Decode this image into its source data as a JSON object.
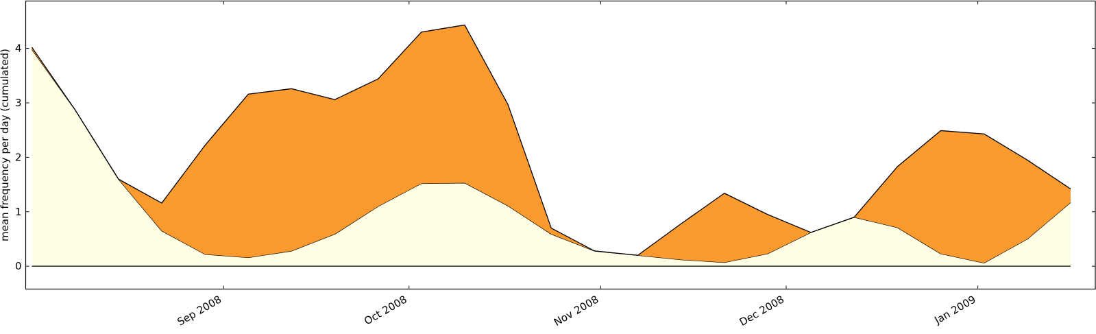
{
  "chart_data": {
    "type": "area",
    "stacked": true,
    "title": "",
    "xlabel": "",
    "ylabel": "mean frequency per day (cumulated)",
    "x": [
      "2008-08-01",
      "2008-08-08",
      "2008-08-15",
      "2008-08-22",
      "2008-08-29",
      "2008-09-05",
      "2008-09-12",
      "2008-09-19",
      "2008-09-26",
      "2008-10-03",
      "2008-10-10",
      "2008-10-17",
      "2008-10-24",
      "2008-10-31",
      "2008-11-07",
      "2008-11-14",
      "2008-11-21",
      "2008-11-28",
      "2008-12-05",
      "2008-12-12",
      "2008-12-19",
      "2008-12-26",
      "2009-01-02",
      "2009-01-09",
      "2009-01-16"
    ],
    "xlim": [
      "2008-07-31",
      "2009-01-20"
    ],
    "x_tick_labels": [
      {
        "date": "2008-09-01",
        "label": "Sep 2008"
      },
      {
        "date": "2008-10-01",
        "label": "Oct 2008"
      },
      {
        "date": "2008-11-01",
        "label": "Nov 2008"
      },
      {
        "date": "2008-12-01",
        "label": "Dec 2008"
      },
      {
        "date": "2009-01-01",
        "label": "Jan 2009"
      }
    ],
    "ylim": [
      -0.42,
      4.87
    ],
    "yticks": [
      0,
      1,
      2,
      3,
      4
    ],
    "series": [
      {
        "values": [
          3.98,
          2.87,
          1.6,
          0.65,
          0.22,
          0.16,
          0.28,
          0.59,
          1.1,
          1.52,
          1.53,
          1.11,
          0.59,
          0.28,
          0.2,
          0.12,
          0.07,
          0.23,
          0.62,
          0.9,
          0.71,
          0.23,
          0.06,
          0.5,
          1.17
        ],
        "color": "#ffffe5"
      },
      {
        "values": [
          0.04,
          0.0,
          0.0,
          0.51,
          2.0,
          3.0,
          2.98,
          2.47,
          2.34,
          2.78,
          2.9,
          1.86,
          0.11,
          0.0,
          0.0,
          0.66,
          1.27,
          0.72,
          0.0,
          0.0,
          1.12,
          2.26,
          2.37,
          1.45,
          0.25
        ],
        "color": "#fb9a2e"
      }
    ]
  }
}
